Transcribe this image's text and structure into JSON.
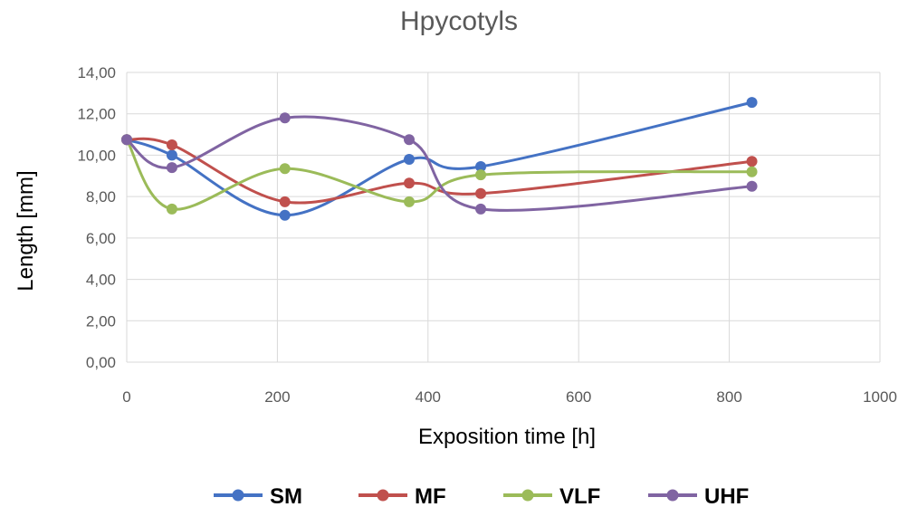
{
  "chart_data": {
    "type": "scatter",
    "title": "Hpycotyls",
    "xlabel": "Exposition time [h]",
    "ylabel": "Length [mm]",
    "xlim": [
      0,
      1000
    ],
    "ylim": [
      0,
      14
    ],
    "xticks": [
      "0",
      "200",
      "400",
      "600",
      "800",
      "1000"
    ],
    "yticks": [
      "0,00",
      "2,00",
      "4,00",
      "6,00",
      "8,00",
      "10,00",
      "12,00",
      "14,00"
    ],
    "grid": true,
    "smoothed_lines": true,
    "legend_position": "bottom",
    "x": [
      0,
      60,
      210,
      375,
      470,
      830
    ],
    "series": [
      {
        "name": "SM",
        "color": "#4472c4",
        "values": [
          10.75,
          10.0,
          7.1,
          9.8,
          9.45,
          12.55
        ]
      },
      {
        "name": "MF",
        "color": "#c0504d",
        "values": [
          10.75,
          10.5,
          7.75,
          8.65,
          8.15,
          9.7
        ]
      },
      {
        "name": "VLF",
        "color": "#9bbb59",
        "values": [
          10.75,
          7.4,
          9.35,
          7.75,
          9.05,
          9.2
        ]
      },
      {
        "name": "UHF",
        "color": "#8064a2",
        "values": [
          10.75,
          9.4,
          11.8,
          10.75,
          7.4,
          8.5
        ]
      }
    ]
  }
}
